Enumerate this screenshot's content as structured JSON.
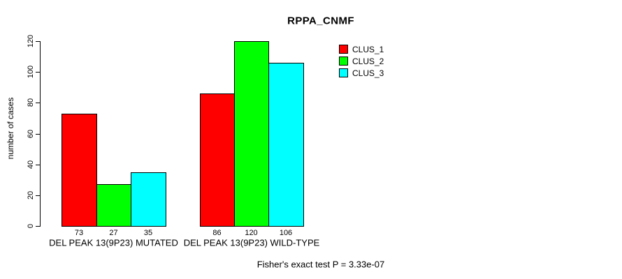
{
  "chart_data": {
    "type": "bar",
    "title": "RPPA_CNMF",
    "ylabel": "number of cases",
    "xlabel": "",
    "categories": [
      "DEL PEAK 13(9P23) MUTATED",
      "DEL PEAK 13(9P23) WILD-TYPE"
    ],
    "series": [
      {
        "name": "CLUS_1",
        "color": "#ff0000",
        "values": [
          73,
          86
        ]
      },
      {
        "name": "CLUS_2",
        "color": "#00ff00",
        "values": [
          27,
          120
        ]
      },
      {
        "name": "CLUS_3",
        "color": "#00ffff",
        "values": [
          35,
          106
        ]
      }
    ],
    "bar_value_labels": [
      [
        73,
        27,
        35
      ],
      [
        86,
        120,
        106
      ]
    ],
    "yticks": [
      0,
      20,
      40,
      60,
      80,
      100,
      120
    ],
    "ylim": [
      0,
      120
    ],
    "grid": false,
    "legend_position": "top-right",
    "bar_border_color": "#000000",
    "text_color": "#000000",
    "background_color": "#ffffff",
    "footnote": "Fisher's exact test P = 3.33e-07"
  }
}
